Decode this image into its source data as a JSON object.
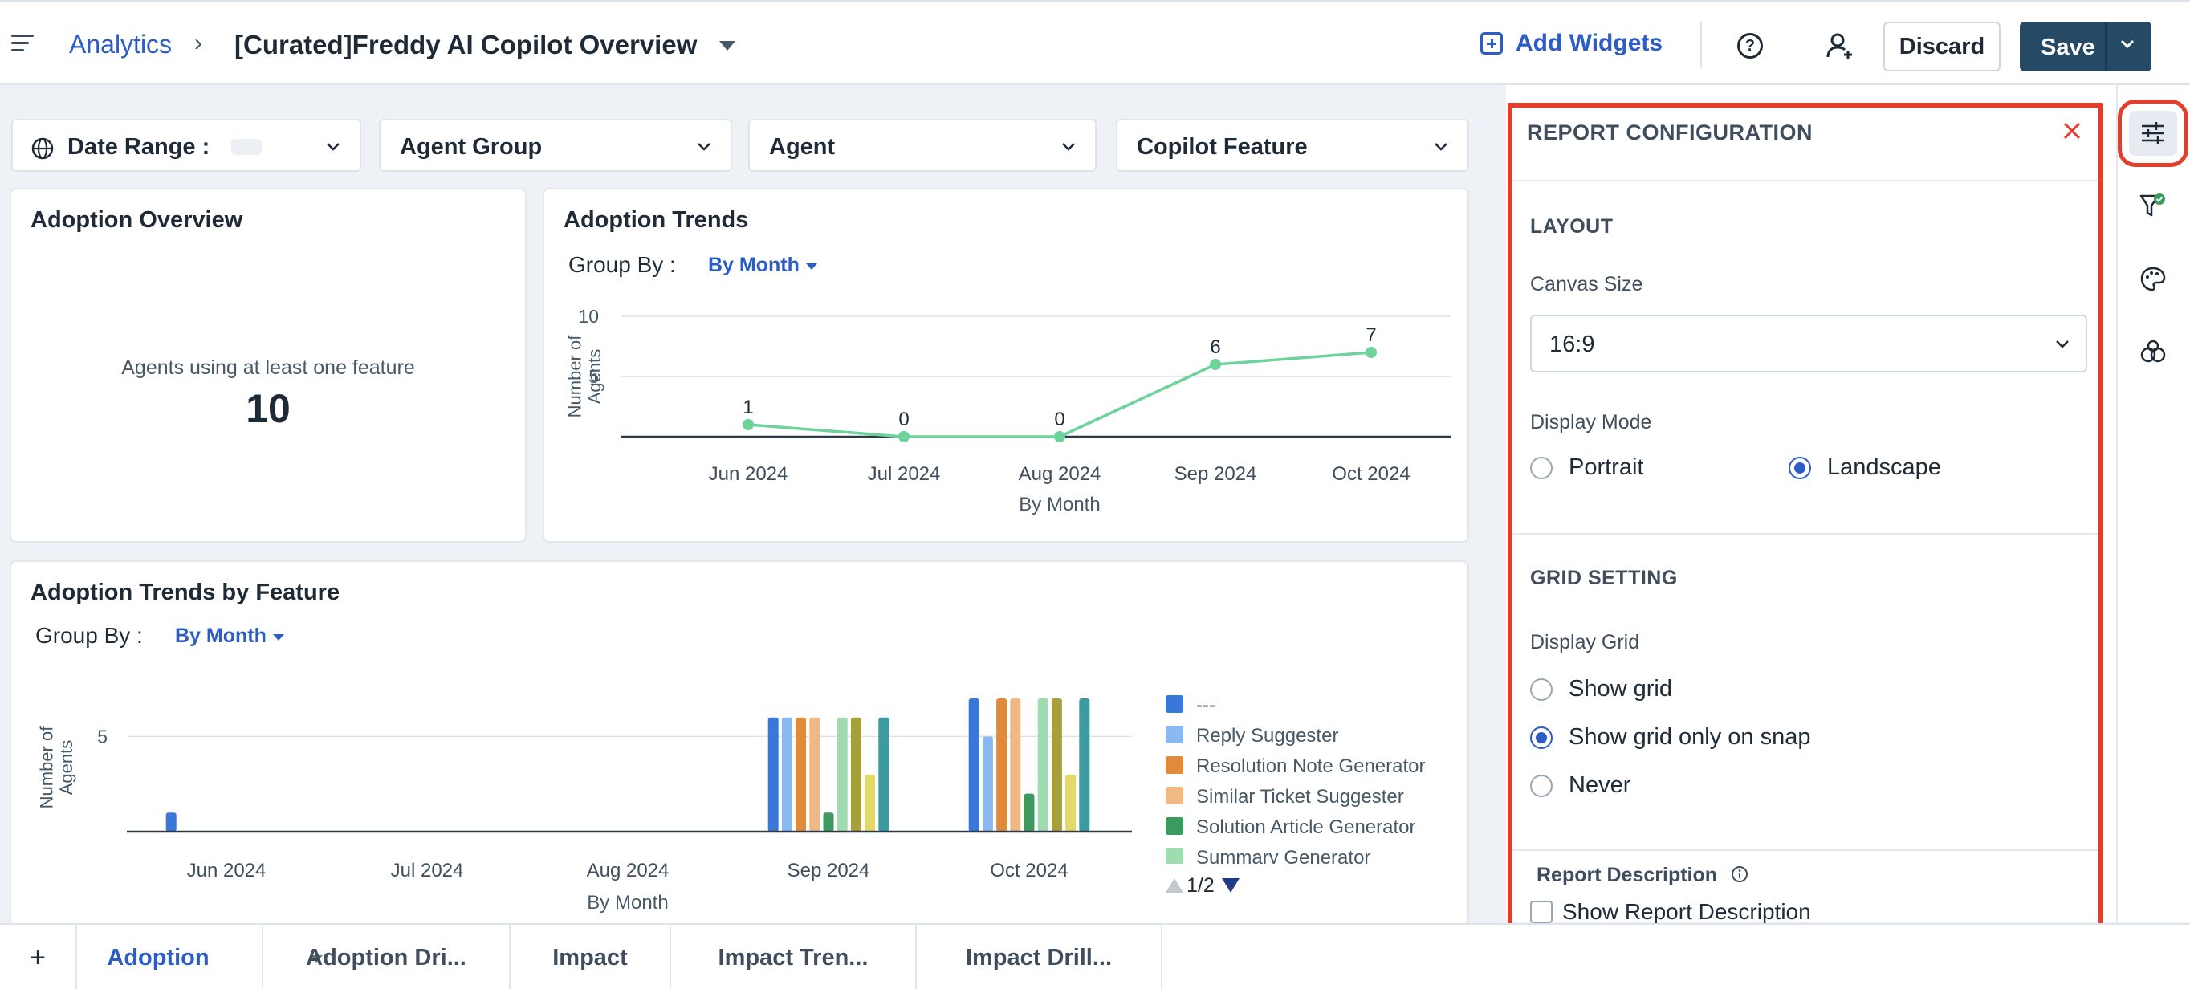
{
  "header": {
    "breadcrumb_root": "Analytics",
    "breadcrumb_sep": "›",
    "report_title": "[Curated]Freddy AI Copilot Overview",
    "add_widgets": "Add Widgets",
    "discard": "Discard",
    "save": "Save"
  },
  "filters": {
    "date_range": "Date Range :",
    "agent_group": "Agent Group",
    "agent": "Agent",
    "copilot_feature": "Copilot Feature"
  },
  "adoption_overview": {
    "title": "Adoption Overview",
    "caption": "Agents using at least one feature",
    "value": "10"
  },
  "adoption_trends": {
    "title": "Adoption Trends",
    "group_by_label": "Group By :",
    "group_by_value": "By Month"
  },
  "feature_trends": {
    "title": "Adoption Trends by Feature",
    "group_by_label": "Group By :",
    "group_by_value": "By Month",
    "legend_page": "1/2"
  },
  "chart_data": [
    {
      "type": "line",
      "title": "Adoption Trends",
      "xlabel": "By Month",
      "ylabel": "Number of Agents",
      "categories": [
        "Jun 2024",
        "Jul 2024",
        "Aug 2024",
        "Sep 2024",
        "Oct 2024"
      ],
      "values": [
        1,
        0,
        0,
        6,
        7
      ],
      "ylim": [
        0,
        10
      ],
      "yticks": [
        5,
        10
      ],
      "color": "#6dd39a"
    },
    {
      "type": "bar",
      "title": "Adoption Trends by Feature",
      "xlabel": "By Month",
      "ylabel": "Number of Agents",
      "categories": [
        "Jun 2024",
        "Jul 2024",
        "Aug 2024",
        "Sep 2024",
        "Oct 2024"
      ],
      "ylim": [
        0,
        7
      ],
      "yticks": [
        5
      ],
      "legend": "right",
      "series": [
        {
          "name": "---",
          "color": "#3a78d8",
          "values": [
            1,
            0,
            0,
            6,
            7
          ]
        },
        {
          "name": "Reply Suggester",
          "color": "#8ab8f0",
          "values": [
            0,
            0,
            0,
            6,
            5
          ]
        },
        {
          "name": "Resolution Note Generator",
          "color": "#e08a3c",
          "values": [
            0,
            0,
            0,
            6,
            7
          ]
        },
        {
          "name": "Similar Ticket Suggester",
          "color": "#efb884",
          "values": [
            0,
            0,
            0,
            6,
            7
          ]
        },
        {
          "name": "Solution Article Generator",
          "color": "#3c9a5f",
          "values": [
            0,
            0,
            0,
            1,
            2
          ]
        },
        {
          "name": "Summary Generator",
          "color": "#9fdcb0",
          "values": [
            0,
            0,
            0,
            6,
            7
          ]
        },
        {
          "name": "",
          "color": "#a7a03a",
          "values": [
            0,
            0,
            0,
            6,
            7
          ]
        },
        {
          "name": "",
          "color": "#e3d868",
          "values": [
            0,
            0,
            0,
            3,
            3
          ]
        },
        {
          "name": "",
          "color": "#3d9aa0",
          "values": [
            0,
            0,
            0,
            6,
            7
          ]
        }
      ]
    }
  ],
  "config": {
    "heading": "REPORT CONFIGURATION",
    "layout_heading": "LAYOUT",
    "canvas_size_label": "Canvas Size",
    "canvas_size_value": "16:9",
    "display_mode_label": "Display Mode",
    "portrait": "Portrait",
    "landscape": "Landscape",
    "grid_heading": "GRID SETTING",
    "display_grid_label": "Display Grid",
    "show_grid": "Show grid",
    "show_grid_snap": "Show grid only on snap",
    "never": "Never",
    "report_description_label": "Report Description",
    "show_report_description": "Show Report Description"
  },
  "tabs": {
    "add": "+",
    "items": [
      "Adoption",
      "Adoption Dri...",
      "Impact",
      "Impact Tren...",
      "Impact Drill..."
    ]
  },
  "colors": {
    "accent": "#2c5cc5",
    "save_button": "#264966",
    "highlight": "#e43d2b"
  }
}
